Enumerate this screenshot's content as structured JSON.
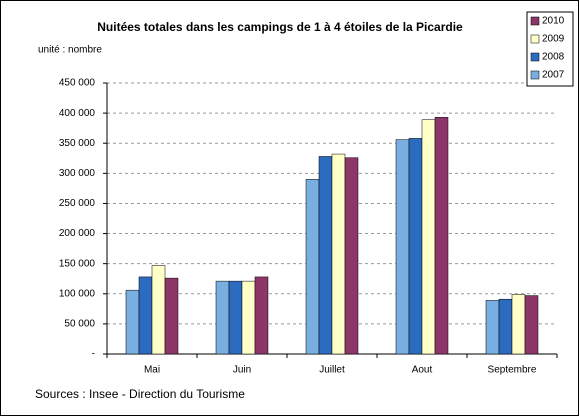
{
  "chart_data": {
    "type": "bar",
    "title": "Nuitées totales dans les campings de 1 à 4 étoiles de la Picardie",
    "subtitle": "unité : nombre",
    "source": "Sources : Insee - Direction du Tourisme",
    "categories": [
      "Mai",
      "Juin",
      "Juillet",
      "Aout",
      "Septembre"
    ],
    "series": [
      {
        "name": "2007",
        "color": "#79aee0",
        "values": [
          106000,
          121000,
          290000,
          356000,
          89000
        ]
      },
      {
        "name": "2008",
        "color": "#2c6cc0",
        "values": [
          128000,
          121000,
          328000,
          358000,
          91000
        ]
      },
      {
        "name": "2009",
        "color": "#ffffc8",
        "values": [
          147000,
          121000,
          332000,
          389000,
          99000
        ]
      },
      {
        "name": "2010",
        "color": "#8c3669",
        "values": [
          126000,
          128000,
          326000,
          393000,
          97000
        ]
      }
    ],
    "ylim": [
      0,
      450000
    ],
    "yticks": [
      {
        "value": 0,
        "label": "-"
      },
      {
        "value": 50000,
        "label": "50 000"
      },
      {
        "value": 100000,
        "label": "100 000"
      },
      {
        "value": 150000,
        "label": "150 000"
      },
      {
        "value": 200000,
        "label": "200 000"
      },
      {
        "value": 250000,
        "label": "250 000"
      },
      {
        "value": 300000,
        "label": "300 000"
      },
      {
        "value": 350000,
        "label": "350 000"
      },
      {
        "value": 400000,
        "label": "400 000"
      },
      {
        "value": 450000,
        "label": "450 000"
      }
    ],
    "grid": true,
    "legend": "top-right"
  }
}
